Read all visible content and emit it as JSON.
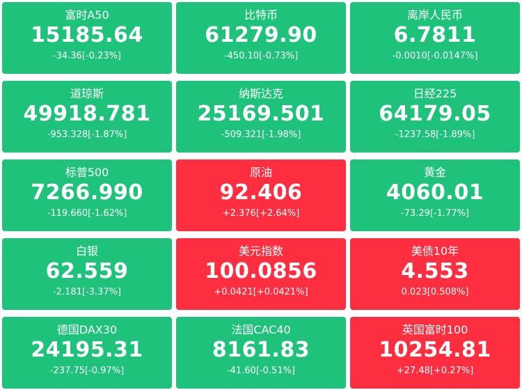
{
  "colors": {
    "down": "#1ec27b",
    "up": "#fd2e40",
    "text": "#ffffff"
  },
  "tiles": [
    {
      "name": "富时A50",
      "price": "15185.64",
      "change": "-34.36[-0.23%]",
      "trend": "down"
    },
    {
      "name": "比特币",
      "price": "61279.90",
      "change": "-450.10[-0.73%]",
      "trend": "down"
    },
    {
      "name": "离岸人民币",
      "price": "6.7811",
      "change": "-0.0010[-0.0147%]",
      "trend": "down"
    },
    {
      "name": "道琼斯",
      "price": "49918.781",
      "change": "-953.328[-1.87%]",
      "trend": "down"
    },
    {
      "name": "纳斯达克",
      "price": "25169.501",
      "change": "-509.321[-1.98%]",
      "trend": "down"
    },
    {
      "name": "日经225",
      "price": "64179.05",
      "change": "-1237.58[-1.89%]",
      "trend": "down"
    },
    {
      "name": "标普500",
      "price": "7266.990",
      "change": "-119.660[-1.62%]",
      "trend": "down"
    },
    {
      "name": "原油",
      "price": "92.406",
      "change": "+2.376[+2.64%]",
      "trend": "up"
    },
    {
      "name": "黄金",
      "price": "4060.01",
      "change": "-73.29[-1.77%]",
      "trend": "down"
    },
    {
      "name": "白银",
      "price": "62.559",
      "change": "-2.181[-3.37%]",
      "trend": "down"
    },
    {
      "name": "美元指数",
      "price": "100.0856",
      "change": "+0.0421[+0.0421%]",
      "trend": "up"
    },
    {
      "name": "美债10年",
      "price": "4.553",
      "change": "0.023[0.508%]",
      "trend": "up"
    },
    {
      "name": "德国DAX30",
      "price": "24195.31",
      "change": "-237.75[-0.97%]",
      "trend": "down"
    },
    {
      "name": "法国CAC40",
      "price": "8161.83",
      "change": "-41.60[-0.51%]",
      "trend": "down"
    },
    {
      "name": "英国富时100",
      "price": "10254.81",
      "change": "+27.48[+0.27%]",
      "trend": "up"
    }
  ]
}
